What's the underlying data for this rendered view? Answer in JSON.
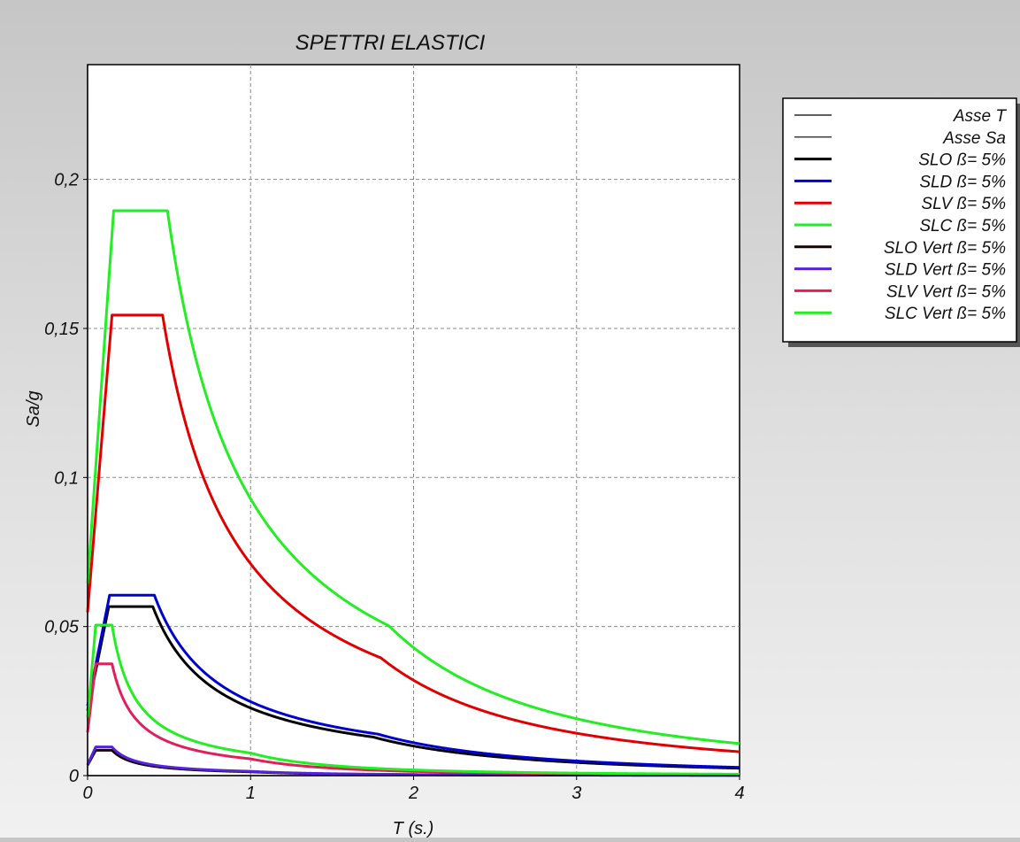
{
  "chart_data": {
    "type": "line",
    "title": "SPETTRI ELASTICI",
    "xlabel": "T (s.)",
    "ylabel": "Sa/g",
    "xlim": [
      0,
      4
    ],
    "ylim": [
      0,
      0.2385
    ],
    "x_ticks": [
      "0",
      "1",
      "2",
      "3",
      "4"
    ],
    "x_tick_values": [
      0,
      1,
      2,
      3,
      4
    ],
    "y_ticks": [
      "0",
      "0,05",
      "0,1",
      "0,15",
      "0,2"
    ],
    "y_tick_values": [
      0,
      0.05,
      0.1,
      0.15,
      0.2
    ],
    "grid": true,
    "legend_position": "right",
    "legend": [
      {
        "name": "Asse T",
        "color": "#000000",
        "thin": true
      },
      {
        "name": "Asse Sa",
        "color": "#000000",
        "thin": true
      },
      {
        "name": "SLO ß= 5%",
        "color": "#000000"
      },
      {
        "name": "SLD ß= 5%",
        "color": "#0000d0"
      },
      {
        "name": "SLV ß= 5%",
        "color": "#e00000"
      },
      {
        "name": "SLC ß= 5%",
        "color": "#22ee22"
      },
      {
        "name": "SLO Vert ß= 5%",
        "color": "#1a0000"
      },
      {
        "name": "SLD Vert ß= 5%",
        "color": "#5522dd"
      },
      {
        "name": "SLV Vert ß= 5%",
        "color": "#e0205a"
      },
      {
        "name": "SLC Vert ß= 5%",
        "color": "#22ee22"
      }
    ],
    "series": [
      {
        "name": "SLO ß= 5%",
        "color": "#000000",
        "kind": "horiz",
        "a0": 0.0218,
        "plateau": 0.0567,
        "TB": 0.13,
        "TC": 0.4,
        "TD": 1.75
      },
      {
        "name": "SLD ß= 5%",
        "color": "#0000d0",
        "kind": "horiz",
        "a0": 0.0234,
        "plateau": 0.0605,
        "TB": 0.135,
        "TC": 0.41,
        "TD": 1.78
      },
      {
        "name": "SLV ß= 5%",
        "color": "#e00000",
        "kind": "horiz",
        "a0": 0.0548,
        "plateau": 0.1545,
        "TB": 0.15,
        "TC": 0.46,
        "TD": 1.8
      },
      {
        "name": "SLC ß= 5%",
        "color": "#22ee22",
        "kind": "horiz",
        "a0": 0.0645,
        "plateau": 0.1895,
        "TB": 0.16,
        "TC": 0.49,
        "TD": 1.85
      },
      {
        "name": "SLO Vert ß= 5%",
        "color": "#1a0000",
        "kind": "vert",
        "a0": 0.0035,
        "plateau": 0.0085,
        "TB": 0.05,
        "TC": 0.15,
        "TD": 1.0
      },
      {
        "name": "SLD Vert ß= 5%",
        "color": "#5522dd",
        "kind": "vert",
        "a0": 0.0037,
        "plateau": 0.0096,
        "TB": 0.05,
        "TC": 0.15,
        "TD": 1.0
      },
      {
        "name": "SLV Vert ß= 5%",
        "color": "#e0205a",
        "kind": "vert",
        "a0": 0.0145,
        "plateau": 0.0375,
        "TB": 0.05,
        "TC": 0.15,
        "TD": 1.0
      },
      {
        "name": "SLC Vert ß= 5%",
        "color": "#22ee22",
        "kind": "vert",
        "a0": 0.0195,
        "plateau": 0.0505,
        "TB": 0.05,
        "TC": 0.15,
        "TD": 1.0
      }
    ]
  }
}
